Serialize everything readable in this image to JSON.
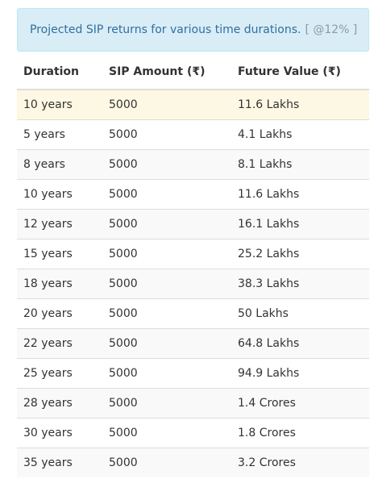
{
  "info": {
    "text": "Projected SIP returns for various time durations.",
    "rate": "[ @12% ]"
  },
  "table": {
    "headers": [
      "Duration",
      "SIP Amount (₹)",
      "Future Value (₹)"
    ],
    "rows": [
      [
        "10 years",
        "5000",
        "11.6 Lakhs"
      ],
      [
        "5 years",
        "5000",
        "4.1 Lakhs"
      ],
      [
        "8 years",
        "5000",
        "8.1 Lakhs"
      ],
      [
        "10 years",
        "5000",
        "11.6 Lakhs"
      ],
      [
        "12 years",
        "5000",
        "16.1 Lakhs"
      ],
      [
        "15 years",
        "5000",
        "25.2 Lakhs"
      ],
      [
        "18 years",
        "5000",
        "38.3 Lakhs"
      ],
      [
        "20 years",
        "5000",
        "50 Lakhs"
      ],
      [
        "22 years",
        "5000",
        "64.8 Lakhs"
      ],
      [
        "25 years",
        "5000",
        "94.9 Lakhs"
      ],
      [
        "28 years",
        "5000",
        "1.4 Crores"
      ],
      [
        "30 years",
        "5000",
        "1.8 Crores"
      ],
      [
        "35 years",
        "5000",
        "3.2 Crores"
      ]
    ]
  },
  "colors": {
    "info_background": "#d9edf7",
    "info_text": "#2f6f9f",
    "highlight_row": "#fcf8e3",
    "striped_row": "#f9f9f9"
  }
}
